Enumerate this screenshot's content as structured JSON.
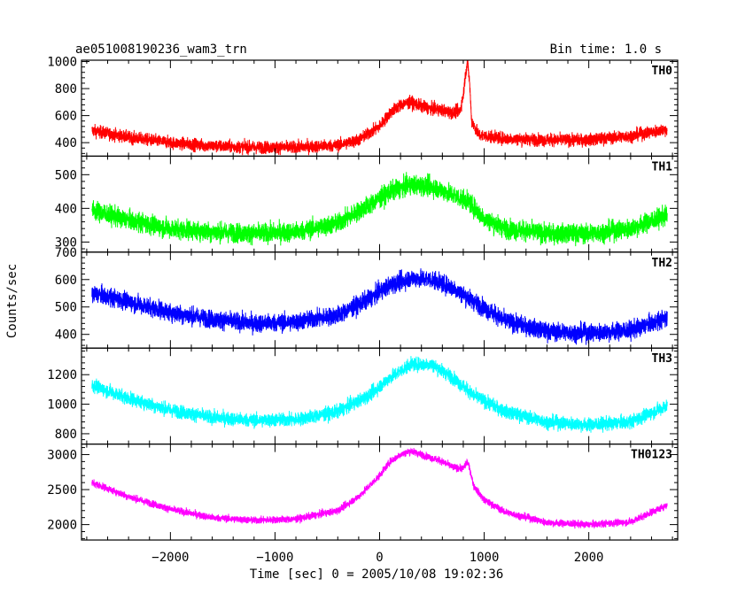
{
  "chart_data": {
    "type": "line",
    "title_left": "ae051008190236_wam3_trn",
    "title_right": "Bin time: 1.0 s",
    "xlabel": "Time [sec] 0 = 2005/10/08 19:02:36",
    "ylabel": "Counts/sec",
    "xlim": [
      -2850,
      2850
    ],
    "x_ticks": [
      -2000,
      -1000,
      0,
      1000,
      2000
    ],
    "x_tick_labels": [
      "−2000",
      "−1000",
      "0",
      "1000",
      "2000"
    ],
    "grid": false,
    "panels": [
      {
        "name": "TH0",
        "color": "#ff0000",
        "ylim": [
          300,
          1010
        ],
        "y_ticks": [
          400,
          600,
          800,
          1000
        ],
        "y_tick_labels": [
          "400",
          "600",
          "800",
          "1000"
        ],
        "noise": 45,
        "x": [
          -2750,
          -2400,
          -2000,
          -1600,
          -1200,
          -800,
          -400,
          -200,
          0,
          100,
          200,
          300,
          400,
          500,
          600,
          700,
          770,
          800,
          820,
          840,
          860,
          880,
          950,
          1200,
          1600,
          2000,
          2400,
          2750
        ],
        "y": [
          490,
          440,
          400,
          375,
          365,
          365,
          380,
          420,
          520,
          620,
          680,
          700,
          670,
          650,
          640,
          620,
          640,
          750,
          900,
          1000,
          850,
          560,
          455,
          430,
          420,
          420,
          450,
          500
        ]
      },
      {
        "name": "TH1",
        "color": "#00ff00",
        "ylim": [
          270,
          555
        ],
        "y_ticks": [
          300,
          400,
          500
        ],
        "y_tick_labels": [
          "300",
          "400",
          "500"
        ],
        "noise": 28,
        "x": [
          -2750,
          -2400,
          -2000,
          -1600,
          -1200,
          -800,
          -400,
          -100,
          100,
          300,
          500,
          700,
          850,
          1000,
          1200,
          1600,
          2000,
          2400,
          2750
        ],
        "y": [
          395,
          365,
          340,
          330,
          325,
          330,
          355,
          410,
          450,
          470,
          465,
          440,
          420,
          370,
          340,
          325,
          325,
          340,
          380
        ]
      },
      {
        "name": "TH2",
        "color": "#0000ff",
        "ylim": [
          350,
          700
        ],
        "y_ticks": [
          400,
          500,
          600,
          700
        ],
        "y_tick_labels": [
          "400",
          "500",
          "600",
          "700"
        ],
        "noise": 32,
        "x": [
          -2750,
          -2400,
          -2000,
          -1600,
          -1200,
          -800,
          -400,
          -100,
          100,
          300,
          500,
          700,
          900,
          1200,
          1600,
          2000,
          2400,
          2750
        ],
        "y": [
          550,
          520,
          480,
          455,
          440,
          445,
          470,
          530,
          580,
          605,
          600,
          570,
          520,
          450,
          410,
          405,
          415,
          460
        ]
      },
      {
        "name": "TH3",
        "color": "#00ffff",
        "ylim": [
          730,
          1380
        ],
        "y_ticks": [
          800,
          1000,
          1200
        ],
        "y_tick_labels": [
          "800",
          "1000",
          "1200"
        ],
        "noise": 45,
        "x": [
          -2750,
          -2400,
          -2000,
          -1600,
          -1200,
          -800,
          -400,
          -100,
          100,
          300,
          500,
          700,
          900,
          1200,
          1600,
          2000,
          2400,
          2750
        ],
        "y": [
          1130,
          1040,
          960,
          910,
          890,
          895,
          950,
          1060,
          1180,
          1270,
          1270,
          1180,
          1060,
          950,
          880,
          860,
          880,
          990
        ]
      },
      {
        "name": "TH0123",
        "color": "#ff00ff",
        "ylim": [
          1780,
          3150
        ],
        "y_ticks": [
          2000,
          2500,
          3000
        ],
        "y_tick_labels": [
          "2000",
          "2500",
          "3000"
        ],
        "noise": 50,
        "x": [
          -2750,
          -2400,
          -2000,
          -1600,
          -1200,
          -800,
          -400,
          -200,
          0,
          100,
          200,
          300,
          400,
          500,
          600,
          700,
          800,
          840,
          870,
          900,
          1000,
          1200,
          1600,
          2000,
          2400,
          2750
        ],
        "y": [
          2600,
          2400,
          2220,
          2100,
          2060,
          2080,
          2200,
          2400,
          2700,
          2900,
          3000,
          3050,
          3000,
          2950,
          2900,
          2820,
          2800,
          2900,
          2750,
          2550,
          2350,
          2180,
          2030,
          2000,
          2040,
          2280
        ]
      }
    ]
  }
}
